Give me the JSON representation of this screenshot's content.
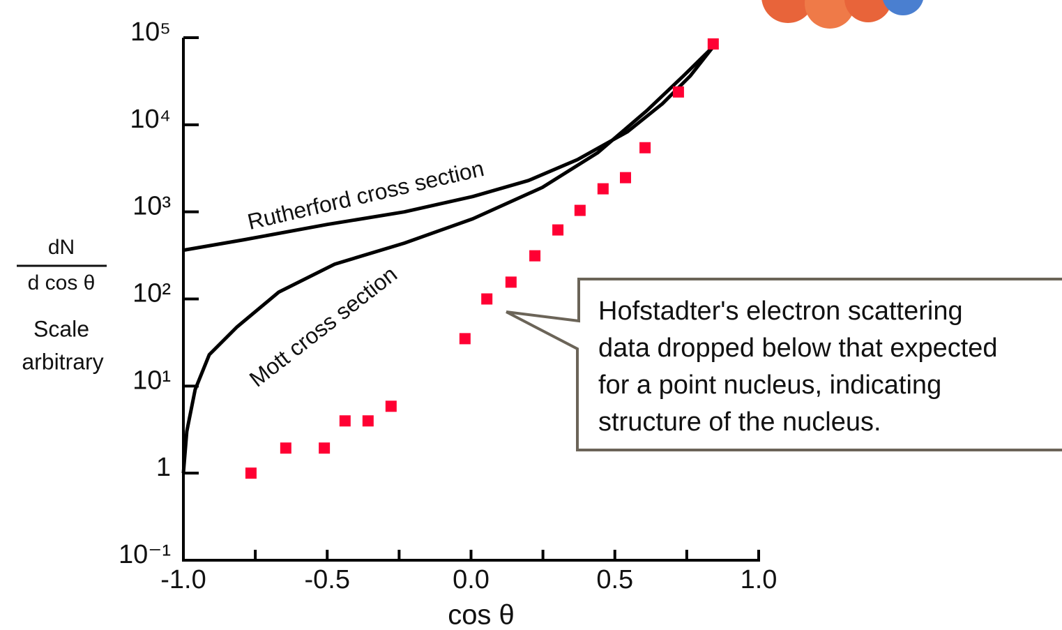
{
  "chart_data": {
    "type": "scatter",
    "xlabel": "cos θ",
    "ylabel": {
      "numerator": "dN",
      "denominator": "d cos θ",
      "note": [
        "Scale",
        "arbitrary"
      ]
    },
    "xlim": [
      -1,
      1
    ],
    "ylim": [
      0.1,
      100000
    ],
    "log_y": true,
    "xticks": [
      {
        "value": -1,
        "label": "-1.0"
      },
      {
        "value": -0.5,
        "label": "-0.5"
      },
      {
        "value": 0,
        "label": "0.0"
      },
      {
        "value": 0.5,
        "label": "0.5"
      },
      {
        "value": 1,
        "label": "1.0"
      }
    ],
    "xminor_ticks": [
      -0.75,
      -0.25,
      0.25,
      0.75
    ],
    "yticks": [
      {
        "value": 0.1,
        "label": "10⁻¹"
      },
      1,
      {
        "value": 10,
        "label": "10¹"
      },
      {
        "value": 100,
        "label": "10²"
      },
      {
        "value": 1000,
        "label": "10³"
      },
      {
        "value": 10000,
        "label": "10⁴"
      },
      {
        "value": 100000,
        "label": "10⁵"
      }
    ],
    "series": [
      {
        "name": "Rutherford cross section",
        "type": "line",
        "color": "#000000",
        "x": [
          -1,
          -0.789,
          -0.498,
          -0.232,
          0.006,
          0.2,
          0.37,
          0.544,
          0.665,
          0.762,
          0.842
        ],
        "values": [
          363,
          479,
          718,
          1000,
          1500,
          2290,
          3980,
          8320,
          17400,
          36300,
          78700
        ]
      },
      {
        "name": "Mott cross section",
        "type": "line",
        "color": "#000000",
        "x": [
          -1,
          -0.988,
          -0.959,
          -0.91,
          -0.813,
          -0.668,
          -0.474,
          -0.232,
          0.006,
          0.248,
          0.441,
          0.611,
          0.738,
          0.842
        ],
        "values": [
          1,
          3.02,
          9.12,
          22.9,
          47.9,
          120,
          251,
          437,
          832,
          1910,
          4790,
          14500,
          36300,
          78700
        ]
      },
      {
        "type": "scatter",
        "color": "#ff0033",
        "x": [
          -0.765,
          -0.644,
          -0.51,
          -0.438,
          -0.358,
          -0.278,
          -0.021,
          0.055,
          0.139,
          0.222,
          0.302,
          0.379,
          0.459,
          0.537,
          0.605,
          0.721,
          0.842
        ],
        "values": [
          1,
          1.94,
          1.94,
          3.98,
          3.98,
          5.86,
          35,
          100,
          156,
          313,
          620,
          1040,
          1840,
          2470,
          5450,
          23800,
          84700
        ]
      }
    ],
    "annotation": [
      "Hofstadter's electron scattering",
      "data dropped below that expected",
      "for a point nucleus, indicating",
      "structure of the nucleus."
    ]
  }
}
